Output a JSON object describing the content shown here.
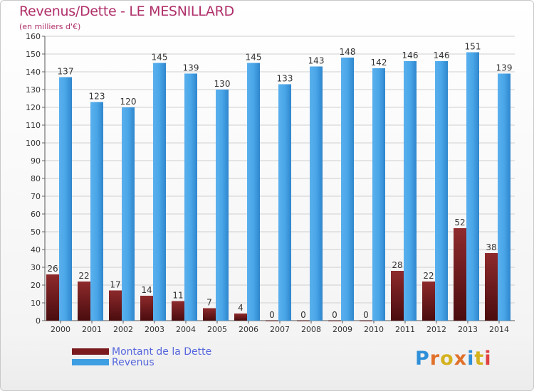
{
  "title": "Revenus/Dette - LE MESNILLARD",
  "subtitle": "(en milliers d'€)",
  "colors": {
    "dette": "#7a1a1e",
    "revenus": "#3d9ee2",
    "grid": "#cfcfcf",
    "title": "#b0306a"
  },
  "legend": {
    "dette_label": "Montant de la Dette",
    "revenus_label": "Revenus"
  },
  "logo": {
    "text": "Proxiti",
    "letter_colors": [
      "#2f8fd8",
      "#e0702a",
      "#d4b21e",
      "#e0702a",
      "#2f8fd8",
      "#d4b21e",
      "#e04040"
    ]
  },
  "chart_data": {
    "type": "bar",
    "title": "Revenus/Dette - LE MESNILLARD",
    "ylabel": "(en milliers d'€)",
    "categories": [
      "2000",
      "2001",
      "2002",
      "2003",
      "2004",
      "2005",
      "2006",
      "2007",
      "2008",
      "2009",
      "2010",
      "2011",
      "2012",
      "2013",
      "2014"
    ],
    "series": [
      {
        "name": "Montant de la Dette",
        "values": [
          26,
          22,
          17,
          14,
          11,
          7,
          4,
          0,
          0,
          0,
          0,
          28,
          22,
          52,
          38
        ]
      },
      {
        "name": "Revenus",
        "values": [
          137,
          123,
          120,
          145,
          139,
          130,
          145,
          133,
          143,
          148,
          142,
          146,
          146,
          151,
          139
        ]
      }
    ],
    "ylim": [
      0,
      160
    ],
    "yticks": [
      0,
      10,
      20,
      30,
      40,
      50,
      60,
      70,
      80,
      90,
      100,
      110,
      120,
      130,
      140,
      150,
      160
    ],
    "grid": true,
    "legend_position": "bottom-left"
  }
}
